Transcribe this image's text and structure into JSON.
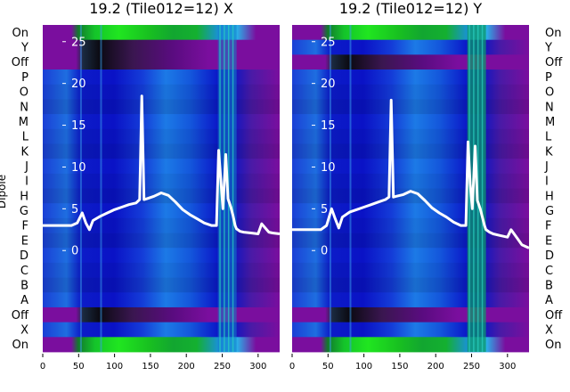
{
  "chart_data": {
    "type": "heatmap",
    "colors": {
      "purple": "#7a0e9e",
      "dark": "#1a0a26",
      "blue": "#0a14d6",
      "cyan": "#1a8ee6",
      "green": "#18d818",
      "line": "#ffffff"
    },
    "row_labels": [
      "On",
      "Y",
      "Off",
      "P",
      "O",
      "N",
      "M",
      "L",
      "K",
      "J",
      "I",
      "H",
      "G",
      "F",
      "E",
      "D",
      "C",
      "B",
      "A",
      "Off",
      "X",
      "On"
    ],
    "ylabel": "Dipole",
    "xlim": [
      0,
      330
    ],
    "xticks": [
      0,
      50,
      100,
      150,
      200,
      250,
      300
    ],
    "overlay_ylim": [
      -2,
      27
    ],
    "overlay_yticks": [
      0,
      5,
      10,
      15,
      20,
      25
    ],
    "panels": [
      {
        "title": "19.2 (Tile012=12) X",
        "overlay_series": {
          "x": [
            0,
            20,
            40,
            48,
            55,
            60,
            65,
            70,
            80,
            90,
            100,
            110,
            120,
            130,
            135,
            138,
            141,
            145,
            155,
            165,
            175,
            185,
            195,
            205,
            215,
            225,
            235,
            242,
            245,
            248,
            251,
            255,
            258,
            262,
            265,
            268,
            270,
            275,
            280,
            290,
            300,
            305,
            315,
            320,
            330
          ],
          "y": [
            3,
            3,
            3,
            3.3,
            4.5,
            3.3,
            2.5,
            3.6,
            4.1,
            4.5,
            4.9,
            5.2,
            5.5,
            5.7,
            6.1,
            18.5,
            6.1,
            6.2,
            6.5,
            6.9,
            6.6,
            5.8,
            4.9,
            4.3,
            3.8,
            3.3,
            3,
            3,
            12,
            8.5,
            5,
            11.5,
            6.2,
            5.2,
            4.2,
            3,
            2.6,
            2.3,
            2.2,
            2.1,
            2,
            3.2,
            2.2,
            2.1,
            2
          ]
        }
      },
      {
        "title": "19.2 (Tile012=12) Y",
        "overlay_series": {
          "x": [
            0,
            20,
            40,
            48,
            55,
            60,
            65,
            70,
            80,
            90,
            100,
            110,
            120,
            130,
            135,
            138,
            141,
            145,
            155,
            165,
            175,
            185,
            195,
            205,
            215,
            225,
            235,
            242,
            245,
            248,
            251,
            255,
            258,
            262,
            265,
            268,
            270,
            275,
            280,
            290,
            300,
            305,
            315,
            320,
            330
          ],
          "y": [
            2.5,
            2.5,
            2.5,
            3,
            5,
            3.8,
            2.7,
            4,
            4.6,
            4.9,
            5.2,
            5.5,
            5.8,
            6.1,
            6.4,
            18,
            6.4,
            6.5,
            6.7,
            7.1,
            6.8,
            6,
            5.1,
            4.5,
            4,
            3.4,
            3,
            3,
            13,
            8,
            5,
            12.5,
            6,
            5,
            4,
            3,
            2.5,
            2.2,
            2,
            1.8,
            1.6,
            2.5,
            1.3,
            0.7,
            0.3
          ]
        }
      }
    ]
  }
}
